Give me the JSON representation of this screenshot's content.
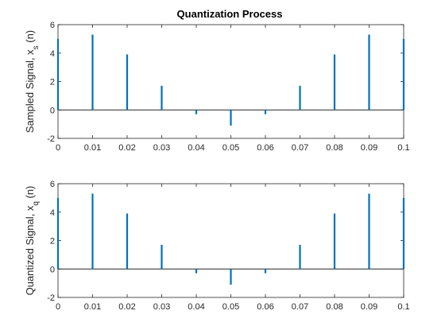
{
  "title": "Quantization Process",
  "colors": {
    "stem": "#0072BD",
    "axes": "#262626",
    "zero_line": "#262626",
    "background": "#ffffff"
  },
  "chart_data": [
    {
      "type": "stem",
      "ylabel_main": "Sampled Signal, x",
      "ylabel_sub": "s",
      "ylabel_tail": "(n)",
      "xlim": [
        0,
        0.1
      ],
      "ylim": [
        -2,
        6
      ],
      "x_ticks": [
        "0",
        "0.01",
        "0.02",
        "0.03",
        "0.04",
        "0.05",
        "0.06",
        "0.07",
        "0.08",
        "0.09",
        "0.1"
      ],
      "y_ticks": [
        "-2",
        "0",
        "2",
        "4",
        "6"
      ],
      "grid": false,
      "x": [
        0,
        0.01,
        0.02,
        0.03,
        0.04,
        0.05,
        0.06,
        0.07,
        0.08,
        0.09,
        0.1
      ],
      "values": [
        5.0,
        5.3,
        3.9,
        1.7,
        -0.3,
        -1.1,
        -0.3,
        1.7,
        3.9,
        5.3,
        5.0
      ]
    },
    {
      "type": "stem",
      "ylabel_main": "Quantized Signal, x",
      "ylabel_sub": "q",
      "ylabel_tail": "(n)",
      "xlim": [
        0,
        0.1
      ],
      "ylim": [
        -2,
        6
      ],
      "x_ticks": [
        "0",
        "0.01",
        "0.02",
        "0.03",
        "0.04",
        "0.05",
        "0.06",
        "0.07",
        "0.08",
        "0.09",
        "0.1"
      ],
      "y_ticks": [
        "-2",
        "0",
        "2",
        "4",
        "6"
      ],
      "grid": false,
      "x": [
        0,
        0.01,
        0.02,
        0.03,
        0.04,
        0.05,
        0.06,
        0.07,
        0.08,
        0.09,
        0.1
      ],
      "values": [
        5.0,
        5.3,
        3.9,
        1.7,
        -0.3,
        -1.1,
        -0.3,
        1.7,
        3.9,
        5.3,
        5.0
      ]
    }
  ]
}
